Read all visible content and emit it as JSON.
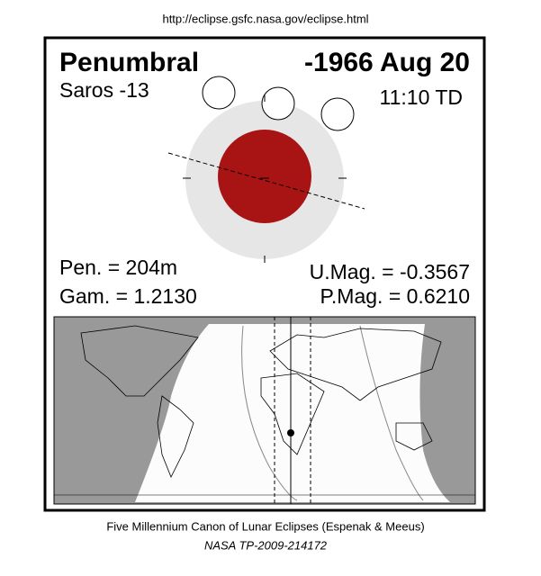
{
  "header": {
    "url": "http://eclipse.gsfc.nasa.gov/eclipse.html"
  },
  "panel": {
    "eclipse_type": "Penumbral",
    "date": "-1966 Aug 20",
    "saros": "Saros -13",
    "time": "11:10 TD",
    "pen": "Pen. = 204m",
    "gam": "Gam. = 1.2130",
    "umag": "U.Mag. = -0.3567",
    "pmag": "P.Mag. = 0.6210"
  },
  "footer": {
    "canon": "Five Millennium Canon of Lunar Eclipses (Espenak & Meeus)",
    "publication": "NASA TP-2009-214172"
  }
}
